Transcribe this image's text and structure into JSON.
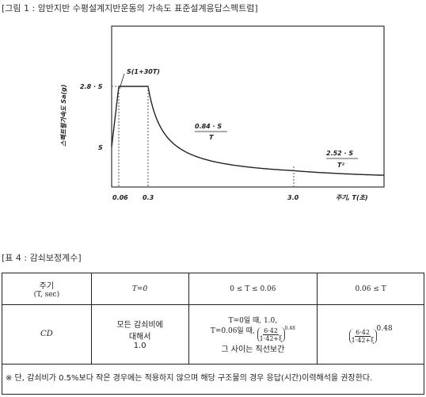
{
  "figure_caption": "[그림 1 : 암반지반 수평설계지반운동의 가속도  표준설계응답스펙트럼]",
  "figure": {
    "ylabel": "스펙트럴가속도 Sa(g)",
    "xlabel": "주기, T(초)",
    "y_ticks": [
      "2.8 · S",
      "S"
    ],
    "x_ticks": [
      "0.06",
      "0.3",
      "3.0"
    ],
    "annotations": {
      "rise": "S(1+30T)",
      "mid_num": "0.84 · S",
      "mid_den": "T",
      "far_num": "2.52 · S",
      "far_den": "T²"
    }
  },
  "chart_data": {
    "type": "line",
    "xlabel": "주기, T(초)",
    "ylabel": "스펙트럴가속도 Sa(g)",
    "series": [
      {
        "x": [
          0,
          0.06,
          0.3,
          3.0
        ],
        "y_expr": [
          "S",
          "2.8·S",
          "2.8·S",
          "2.52·S/T²"
        ],
        "segments": [
          "S(1+30T)",
          "2.8·S",
          "0.84·S/T",
          "2.52·S/T²"
        ]
      }
    ]
  },
  "table_caption": "[표 4 : 감쇠보정계수]",
  "table": {
    "header": {
      "col1_line1": "주기",
      "col1_line2": "(T, sec)",
      "col2": "T=0",
      "col3": "0 ≤ T ≤ 0.06",
      "col4": "0.06 ≤ T"
    },
    "row": {
      "symbol": "CD",
      "col2_line1": "모든 감쇠비에",
      "col2_line2": "대해서",
      "col2_line3": "1.0",
      "col3_line1": "T=0일 때,   1.0,",
      "col3_line2_prefix": "T=0.06일 때,",
      "frac_num": "6·42",
      "frac_den": "1·42+ξ",
      "exponent": "0.48",
      "col3_line3": "그 사이는 직선보간",
      "col4_frac_num": "6·42",
      "col4_frac_den": "1·42+ξ",
      "col4_exponent": "0.48"
    },
    "note": "※ 단, 감쇠비가 0.5%보다 작은 경우에는 적용하지 않으며 해당 구조물의 경우 응답(시간)이력해석을 권장한다."
  }
}
